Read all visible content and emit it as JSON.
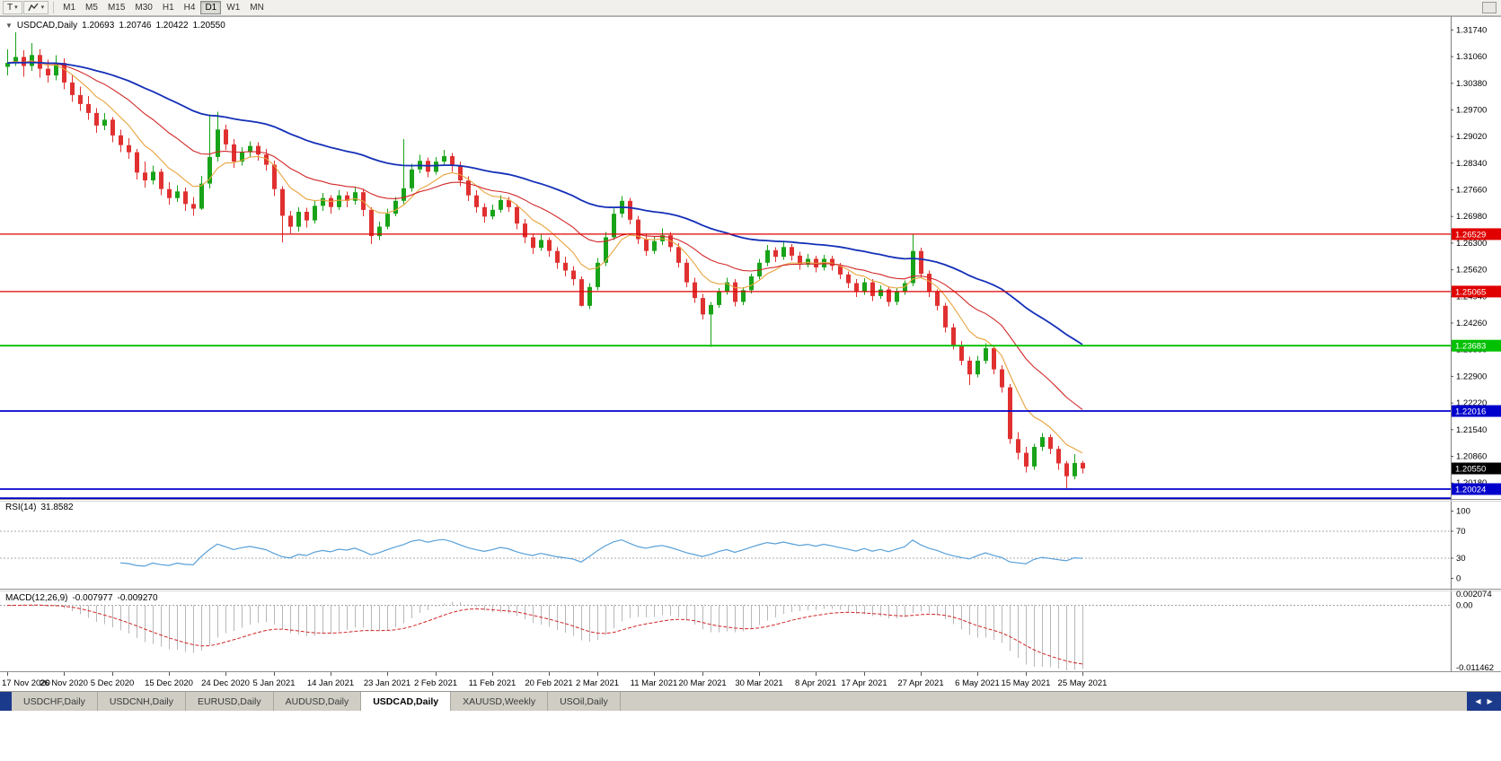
{
  "toolbar": {
    "templates_button": "T",
    "timeframes": [
      {
        "label": "M1",
        "active": false
      },
      {
        "label": "M5",
        "active": false
      },
      {
        "label": "M15",
        "active": false
      },
      {
        "label": "M30",
        "active": false
      },
      {
        "label": "H1",
        "active": false
      },
      {
        "label": "H4",
        "active": false
      },
      {
        "label": "D1",
        "active": true
      },
      {
        "label": "W1",
        "active": false
      },
      {
        "label": "MN",
        "active": false
      }
    ]
  },
  "icons": {
    "dropdown": "▾",
    "collapse": "▼",
    "tab_prev": "◀",
    "tab_next": "▶"
  },
  "colors": {
    "bull": "#18a318",
    "bear": "#e03030",
    "navy": "#1c3a8c"
  },
  "chart_data": {
    "type": "candlestick",
    "symbol": "USDCAD",
    "timeframe": "Daily",
    "info": {
      "title": "USDCAD,Daily",
      "open": "1.20693",
      "high": "1.20746",
      "low": "1.20422",
      "close": "1.20550"
    },
    "price_axis_ticks": [
      "1.31740",
      "1.31060",
      "1.30380",
      "1.29700",
      "1.29020",
      "1.28340",
      "1.27660",
      "1.26980",
      "1.26300",
      "1.25620",
      "1.24940",
      "1.24260",
      "1.23580",
      "1.22900",
      "1.22220",
      "1.21540",
      "1.20860",
      "1.20180"
    ],
    "date_ticks": [
      "17 Nov 2020",
      "26 Nov 2020",
      "5 Dec 2020",
      "15 Dec 2020",
      "24 Dec 2020",
      "5 Jan 2021",
      "14 Jan 2021",
      "23 Jan 2021",
      "2 Feb 2021",
      "11 Feb 2021",
      "20 Feb 2021",
      "2 Mar 2021",
      "11 Mar 2021",
      "20 Mar 2021",
      "30 Mar 2021",
      "8 Apr 2021",
      "17 Apr 2021",
      "27 Apr 2021",
      "6 May 2021",
      "15 May 2021",
      "25 May 2021"
    ],
    "horizontal_lines": [
      {
        "price": 1.26529,
        "badge": "1.26529",
        "color": "#e00000",
        "width": 1.2
      },
      {
        "price": 1.25065,
        "badge": "1.25065",
        "color": "#e00000",
        "width": 1.2
      },
      {
        "price": 1.23683,
        "badge": "1.23683",
        "color": "#00c000",
        "width": 1.8
      },
      {
        "price": 1.22016,
        "badge": "1.22016",
        "color": "#0000cc",
        "width": 1.8
      },
      {
        "price": 1.20024,
        "badge": "1.20024",
        "color": "#0000cc",
        "width": 1.8
      },
      {
        "price": 1.1979,
        "badge": null,
        "color": "#0000cc",
        "width": 1.8
      }
    ],
    "current_price": {
      "value": 1.2055,
      "badge": "1.20550",
      "badge_color": "#000000"
    },
    "moving_averages": [
      {
        "period": 8,
        "color": "#e8a33d"
      },
      {
        "period": 20,
        "color": "#d22828"
      },
      {
        "period": 50,
        "color": "#1430b8"
      }
    ],
    "indicators": {
      "rsi": {
        "label": "RSI(14)",
        "period": 14,
        "value": "31.8582",
        "levels": [
          70,
          30
        ],
        "axis_ticks": [
          "100",
          "70",
          "30",
          "0"
        ],
        "color": "#58a0d8"
      },
      "macd": {
        "label": "MACD(12,26,9)",
        "fast": 12,
        "slow": 26,
        "signal": 9,
        "main_value": "-0.007977",
        "signal_value": "-0.009270",
        "axis_ticks": [
          "0.002074",
          "0.00",
          "-0.011462"
        ],
        "hist_color": "#b8b8b8",
        "signal_color": "#d22525"
      }
    },
    "ohlc": [
      [
        1.308,
        1.3125,
        1.3058,
        1.309
      ],
      [
        1.309,
        1.3168,
        1.3082,
        1.3105
      ],
      [
        1.3105,
        1.3122,
        1.3055,
        1.3082
      ],
      [
        1.3082,
        1.314,
        1.307,
        1.311
      ],
      [
        1.311,
        1.3125,
        1.3052,
        1.3075
      ],
      [
        1.3075,
        1.3098,
        1.304,
        1.3058
      ],
      [
        1.3058,
        1.311,
        1.3045,
        1.309
      ],
      [
        1.309,
        1.3102,
        1.3022,
        1.304
      ],
      [
        1.304,
        1.3058,
        1.299,
        1.3008
      ],
      [
        1.3008,
        1.303,
        1.2968,
        1.2985
      ],
      [
        1.2985,
        1.3005,
        1.2945,
        1.2962
      ],
      [
        1.2962,
        1.2975,
        1.2912,
        1.293
      ],
      [
        1.293,
        1.2962,
        1.2918,
        1.2945
      ],
      [
        1.2945,
        1.2952,
        1.2888,
        1.2905
      ],
      [
        1.2905,
        1.292,
        1.2862,
        1.288
      ],
      [
        1.288,
        1.2898,
        1.2845,
        1.2862
      ],
      [
        1.2862,
        1.287,
        1.2792,
        1.281
      ],
      [
        1.281,
        1.2838,
        1.2772,
        1.279
      ],
      [
        1.279,
        1.2828,
        1.278,
        1.2812
      ],
      [
        1.2812,
        1.282,
        1.2752,
        1.2768
      ],
      [
        1.2768,
        1.2785,
        1.2728,
        1.2745
      ],
      [
        1.2745,
        1.2778,
        1.2735,
        1.2762
      ],
      [
        1.2762,
        1.2772,
        1.2712,
        1.273
      ],
      [
        1.273,
        1.2748,
        1.27,
        1.2718
      ],
      [
        1.2718,
        1.2802,
        1.2715,
        1.2782
      ],
      [
        1.2782,
        1.2958,
        1.277,
        1.285
      ],
      [
        1.285,
        1.2965,
        1.2838,
        1.292
      ],
      [
        1.292,
        1.2932,
        1.2868,
        1.2882
      ],
      [
        1.2882,
        1.2895,
        1.2822,
        1.2838
      ],
      [
        1.2838,
        1.2875,
        1.2828,
        1.2862
      ],
      [
        1.2862,
        1.289,
        1.2848,
        1.2878
      ],
      [
        1.2878,
        1.2888,
        1.284,
        1.2856
      ],
      [
        1.2856,
        1.287,
        1.2815,
        1.283
      ],
      [
        1.283,
        1.284,
        1.275,
        1.2768
      ],
      [
        1.2768,
        1.2775,
        1.2632,
        1.27
      ],
      [
        1.27,
        1.2712,
        1.2655,
        1.2672
      ],
      [
        1.2672,
        1.2722,
        1.266,
        1.271
      ],
      [
        1.271,
        1.272,
        1.267,
        1.2688
      ],
      [
        1.2688,
        1.2738,
        1.268,
        1.2725
      ],
      [
        1.2725,
        1.2758,
        1.2712,
        1.2745
      ],
      [
        1.2745,
        1.2752,
        1.2705,
        1.2722
      ],
      [
        1.2722,
        1.2765,
        1.2715,
        1.2752
      ],
      [
        1.2752,
        1.2762,
        1.2722,
        1.2738
      ],
      [
        1.2738,
        1.2772,
        1.2728,
        1.276
      ],
      [
        1.276,
        1.2768,
        1.2698,
        1.2715
      ],
      [
        1.2715,
        1.2722,
        1.2628,
        1.2648
      ],
      [
        1.2648,
        1.2685,
        1.2638,
        1.2672
      ],
      [
        1.2672,
        1.2718,
        1.2665,
        1.2705
      ],
      [
        1.2705,
        1.2748,
        1.2698,
        1.2738
      ],
      [
        1.2738,
        1.2895,
        1.273,
        1.277
      ],
      [
        1.277,
        1.2832,
        1.2762,
        1.2818
      ],
      [
        1.2818,
        1.2855,
        1.2808,
        1.284
      ],
      [
        1.284,
        1.2848,
        1.2798,
        1.2812
      ],
      [
        1.2812,
        1.285,
        1.2805,
        1.2838
      ],
      [
        1.2838,
        1.2868,
        1.2828,
        1.2852
      ],
      [
        1.2852,
        1.286,
        1.2812,
        1.2828
      ],
      [
        1.2828,
        1.2838,
        1.2775,
        1.279
      ],
      [
        1.279,
        1.28,
        1.2738,
        1.2752
      ],
      [
        1.2752,
        1.2765,
        1.2708,
        1.2722
      ],
      [
        1.2722,
        1.2732,
        1.2682,
        1.2698
      ],
      [
        1.2698,
        1.2728,
        1.269,
        1.2715
      ],
      [
        1.2715,
        1.2752,
        1.2708,
        1.274
      ],
      [
        1.274,
        1.2748,
        1.271,
        1.2722
      ],
      [
        1.2722,
        1.273,
        1.2665,
        1.268
      ],
      [
        1.268,
        1.2692,
        1.263,
        1.2645
      ],
      [
        1.2645,
        1.2655,
        1.2602,
        1.2618
      ],
      [
        1.2618,
        1.2652,
        1.261,
        1.2638
      ],
      [
        1.2638,
        1.2645,
        1.2595,
        1.261
      ],
      [
        1.261,
        1.262,
        1.2565,
        1.258
      ],
      [
        1.258,
        1.2595,
        1.2545,
        1.256
      ],
      [
        1.256,
        1.2572,
        1.2522,
        1.2538
      ],
      [
        1.2538,
        1.2545,
        1.2468,
        1.247
      ],
      [
        1.247,
        1.2528,
        1.2462,
        1.2518
      ],
      [
        1.2518,
        1.2592,
        1.251,
        1.258
      ],
      [
        1.258,
        1.2658,
        1.2572,
        1.2645
      ],
      [
        1.2645,
        1.2718,
        1.2638,
        1.2705
      ],
      [
        1.2705,
        1.275,
        1.2695,
        1.2738
      ],
      [
        1.2738,
        1.2745,
        1.2678,
        1.269
      ],
      [
        1.269,
        1.27,
        1.2628,
        1.264
      ],
      [
        1.264,
        1.2655,
        1.2598,
        1.261
      ],
      [
        1.261,
        1.2648,
        1.2602,
        1.2635
      ],
      [
        1.2635,
        1.2668,
        1.2625,
        1.265
      ],
      [
        1.265,
        1.2658,
        1.2608,
        1.262
      ],
      [
        1.262,
        1.263,
        1.2568,
        1.258
      ],
      [
        1.258,
        1.259,
        1.2518,
        1.253
      ],
      [
        1.253,
        1.2542,
        1.2478,
        1.249
      ],
      [
        1.249,
        1.25,
        1.2435,
        1.2448
      ],
      [
        1.2448,
        1.248,
        1.2365,
        1.2472
      ],
      [
        1.2472,
        1.2515,
        1.2465,
        1.2505
      ],
      [
        1.2505,
        1.2542,
        1.2498,
        1.253
      ],
      [
        1.253,
        1.2538,
        1.2468,
        1.248
      ],
      [
        1.248,
        1.2518,
        1.2472,
        1.251
      ],
      [
        1.251,
        1.2552,
        1.2502,
        1.2545
      ],
      [
        1.2545,
        1.259,
        1.2538,
        1.258
      ],
      [
        1.258,
        1.2625,
        1.2572,
        1.2612
      ],
      [
        1.2612,
        1.262,
        1.2582,
        1.2595
      ],
      [
        1.2595,
        1.2632,
        1.2588,
        1.262
      ],
      [
        1.262,
        1.2628,
        1.2585,
        1.2598
      ],
      [
        1.2598,
        1.2608,
        1.2562,
        1.2575
      ],
      [
        1.2575,
        1.2602,
        1.2568,
        1.259
      ],
      [
        1.259,
        1.2598,
        1.2555,
        1.2568
      ],
      [
        1.2568,
        1.26,
        1.256,
        1.259
      ],
      [
        1.259,
        1.2598,
        1.256,
        1.2572
      ],
      [
        1.2572,
        1.258,
        1.2538,
        1.255
      ],
      [
        1.255,
        1.2558,
        1.2515,
        1.2528
      ],
      [
        1.2528,
        1.2538,
        1.2492,
        1.2505
      ],
      [
        1.2505,
        1.254,
        1.2498,
        1.253
      ],
      [
        1.253,
        1.2538,
        1.2482,
        1.2495
      ],
      [
        1.2495,
        1.2522,
        1.2488,
        1.2512
      ],
      [
        1.2512,
        1.252,
        1.2468,
        1.248
      ],
      [
        1.248,
        1.2515,
        1.2472,
        1.2505
      ],
      [
        1.2505,
        1.2535,
        1.2498,
        1.2528
      ],
      [
        1.2528,
        1.2654,
        1.252,
        1.261
      ],
      [
        1.261,
        1.2618,
        1.254,
        1.2552
      ],
      [
        1.2552,
        1.256,
        1.2492,
        1.2505
      ],
      [
        1.2505,
        1.2512,
        1.2458,
        1.247
      ],
      [
        1.247,
        1.2478,
        1.2402,
        1.2415
      ],
      [
        1.2415,
        1.2425,
        1.2358,
        1.237
      ],
      [
        1.237,
        1.238,
        1.2318,
        1.233
      ],
      [
        1.233,
        1.234,
        1.2268,
        1.2295
      ],
      [
        1.2295,
        1.2342,
        1.2288,
        1.233
      ],
      [
        1.233,
        1.2375,
        1.2322,
        1.2362
      ],
      [
        1.2362,
        1.237,
        1.2295,
        1.2308
      ],
      [
        1.2308,
        1.2318,
        1.2248,
        1.2262
      ],
      [
        1.2262,
        1.227,
        1.2118,
        1.213
      ],
      [
        1.213,
        1.2148,
        1.2078,
        1.2095
      ],
      [
        1.2095,
        1.211,
        1.2045,
        1.206
      ],
      [
        1.206,
        1.2118,
        1.2052,
        1.211
      ],
      [
        1.211,
        1.2145,
        1.21,
        1.2135
      ],
      [
        1.2135,
        1.2142,
        1.2092,
        1.2105
      ],
      [
        1.2105,
        1.2112,
        1.2052,
        1.2068
      ],
      [
        1.2068,
        1.2075,
        1.2005,
        1.2035
      ],
      [
        1.2035,
        1.2092,
        1.2028,
        1.2069
      ],
      [
        1.20693,
        1.20746,
        1.20422,
        1.2055
      ]
    ]
  },
  "tabs": [
    {
      "label": "USDCHF,Daily",
      "active": false
    },
    {
      "label": "USDCNH,Daily",
      "active": false
    },
    {
      "label": "EURUSD,Daily",
      "active": false
    },
    {
      "label": "AUDUSD,Daily",
      "active": false
    },
    {
      "label": "USDCAD,Daily",
      "active": true
    },
    {
      "label": "XAUUSD,Weekly",
      "active": false
    },
    {
      "label": "USOil,Daily",
      "active": false
    }
  ]
}
